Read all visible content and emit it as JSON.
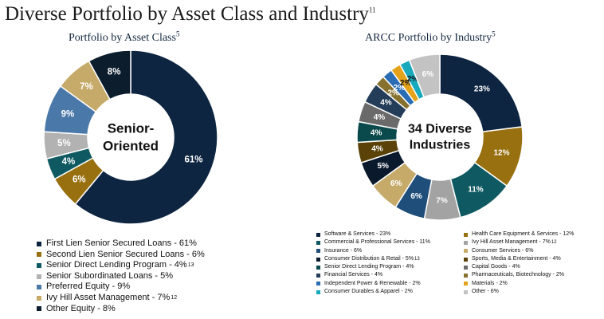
{
  "page": {
    "title": "Diverse Portfolio by Asset Class and Industry",
    "title_footnote": "11"
  },
  "chart_data": [
    {
      "type": "pie",
      "title": "Portfolio by Asset Class",
      "title_footnote": "5",
      "center_label": [
        "Senior-",
        "Oriented"
      ],
      "slices": [
        {
          "label": "First Lien Senior Secured Loans - 61%",
          "value": 61,
          "display": "61%",
          "color": "#0e2541",
          "text_color": "#ffffff",
          "footnote": ""
        },
        {
          "label": "Second Lien Senior Secured Loans - 6%",
          "value": 6,
          "display": "6%",
          "color": "#987010",
          "text_color": "#ffffff",
          "footnote": ""
        },
        {
          "label": "Senior Direct Lending Program - 4%",
          "value": 4,
          "display": "4%",
          "color": "#0f5a62",
          "text_color": "#ffffff",
          "footnote": "13"
        },
        {
          "label": "Senior Subordinated Loans - 5%",
          "value": 5,
          "display": "5%",
          "color": "#b2b2b2",
          "text_color": "#ffffff",
          "footnote": ""
        },
        {
          "label": "Preferred Equity - 9%",
          "value": 9,
          "display": "9%",
          "color": "#4a78a8",
          "text_color": "#ffffff",
          "footnote": ""
        },
        {
          "label": "Ivy Hill Asset Management - 7%",
          "value": 7,
          "display": "7%",
          "color": "#c6aa6a",
          "text_color": "#ffffff",
          "footnote": "12"
        },
        {
          "label": "Other Equity - 8%",
          "value": 8,
          "display": "8%",
          "color": "#0c1d2e",
          "text_color": "#ffffff",
          "footnote": ""
        }
      ]
    },
    {
      "type": "pie",
      "title": "ARCC Portfolio by Industry",
      "title_footnote": "5",
      "center_label": [
        "34 Diverse",
        "Industries"
      ],
      "slices": [
        {
          "label": "Software & Services - 23%",
          "value": 23,
          "display": "23%",
          "color": "#0e2541",
          "text_color": "#ffffff",
          "footnote": ""
        },
        {
          "label": "Health Care Equipment & Services - 12%",
          "value": 12,
          "display": "12%",
          "color": "#987010",
          "text_color": "#ffffff",
          "footnote": ""
        },
        {
          "label": "Commercial & Professional Services - 11%",
          "value": 11,
          "display": "11%",
          "color": "#0f5a62",
          "text_color": "#ffffff",
          "footnote": ""
        },
        {
          "label": "Ivy Hill Asset Management - 7%",
          "value": 7,
          "display": "7%",
          "color": "#a3a3a3",
          "text_color": "#ffffff",
          "footnote": "12"
        },
        {
          "label": "Insurance - 6%",
          "value": 6,
          "display": "6%",
          "color": "#1f4e7a",
          "text_color": "#ffffff",
          "footnote": ""
        },
        {
          "label": "Consumer Services - 6%",
          "value": 6,
          "display": "6%",
          "color": "#c6aa6a",
          "text_color": "#ffffff",
          "footnote": ""
        },
        {
          "label": "Consumer Distribution & Retail - 5%",
          "value": 5,
          "display": "5%",
          "color": "#0a1a2c",
          "text_color": "#ffffff",
          "footnote": "13"
        },
        {
          "label": "Sports, Media & Entertainment - 4%",
          "value": 4,
          "display": "4%",
          "color": "#5a4209",
          "text_color": "#ffffff",
          "footnote": ""
        },
        {
          "label": "Senior Direct Lending Program - 4%",
          "value": 4,
          "display": "4%",
          "color": "#0b4a4c",
          "text_color": "#ffffff",
          "footnote": ""
        },
        {
          "label": "Capital Goods - 4%",
          "value": 4,
          "display": "4%",
          "color": "#6a6a6a",
          "text_color": "#ffffff",
          "footnote": ""
        },
        {
          "label": "Financial Services - 4%",
          "value": 4,
          "display": "4%",
          "color": "#243d58",
          "text_color": "#ffffff",
          "footnote": ""
        },
        {
          "label": "Pharmaceuticals, Biotechnology  - 2%",
          "value": 2,
          "display": "2%",
          "color": "#86712e",
          "text_color": "#ffffff",
          "footnote": ""
        },
        {
          "label": "Independent Power & Renewable - 2%",
          "value": 2,
          "display": "2%",
          "color": "#2a6db4",
          "text_color": "#ffffff",
          "footnote": ""
        },
        {
          "label": "Materials - 2%",
          "value": 2,
          "display": "2%",
          "color": "#e3a21a",
          "text_color": "#111111",
          "footnote": ""
        },
        {
          "label": "Consumer Durables & Apparel - 2%",
          "value": 2,
          "display": "2%",
          "color": "#19a9bd",
          "text_color": "#111111",
          "footnote": ""
        },
        {
          "label": "Other - 6%",
          "value": 6,
          "display": "6%",
          "color": "#c3c3c3",
          "text_color": "#ffffff",
          "footnote": ""
        }
      ]
    }
  ]
}
